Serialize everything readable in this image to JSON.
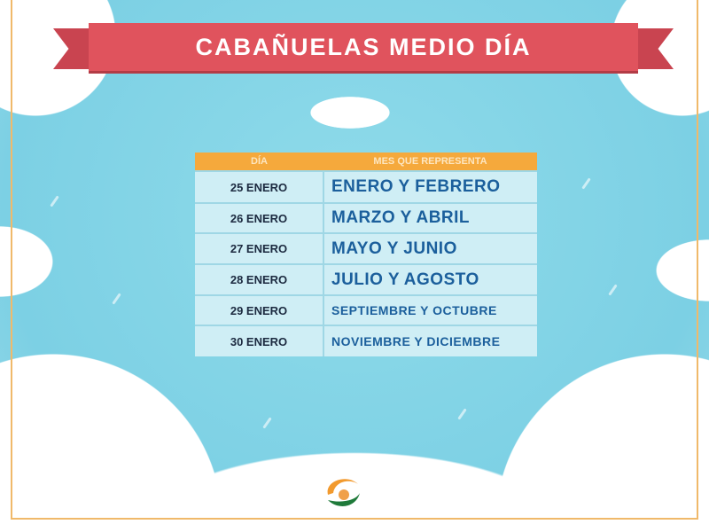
{
  "title": "CABAÑUELAS MEDIO DÍA",
  "table": {
    "headers": [
      "DÍA",
      "MES QUE REPRESENTA"
    ],
    "rows": [
      {
        "day": "25 ENERO",
        "months": "ENERO Y FEBRERO"
      },
      {
        "day": "26 ENERO",
        "months": "MARZO Y ABRIL"
      },
      {
        "day": "27 ENERO",
        "months": "MAYO Y JUNIO"
      },
      {
        "day": "28 ENERO",
        "months": "JULIO Y AGOSTO"
      },
      {
        "day": "29 ENERO",
        "months": "SEPTIEMBRE Y OCTUBRE"
      },
      {
        "day": "30 ENERO",
        "months": "NOVIEMBRE Y DICIEMBRE"
      }
    ]
  },
  "colors": {
    "banner": "#e0535d",
    "header": "#f5a93c",
    "month_text": "#1b5f9c",
    "background": "#7fd3e6"
  },
  "logo": "orange-green-circle-logo"
}
